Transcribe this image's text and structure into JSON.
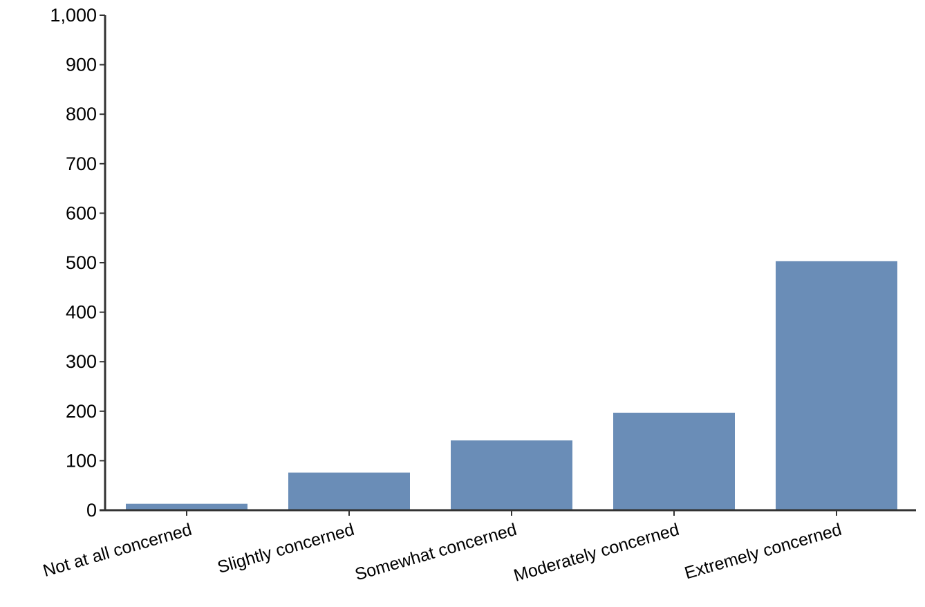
{
  "chart_data": {
    "type": "bar",
    "title": "",
    "xlabel": "",
    "ylabel": "",
    "categories": [
      "Not at all concerned",
      "Slightly concerned",
      "Somewhat concerned",
      "Moderately concerned",
      "Extremely concerned"
    ],
    "values": [
      13,
      76,
      141,
      197,
      503
    ],
    "ylim": [
      0,
      1000
    ],
    "yticks": [
      0,
      100,
      200,
      300,
      400,
      500,
      600,
      700,
      800,
      900,
      1000
    ],
    "ytick_labels": [
      "0",
      "100",
      "200",
      "300",
      "400",
      "500",
      "600",
      "700",
      "800",
      "900",
      "1,000"
    ],
    "grid": false,
    "legend": "none"
  },
  "colors": {
    "bar": "#6a8db7",
    "axis": "#333333",
    "text": "#000000"
  }
}
